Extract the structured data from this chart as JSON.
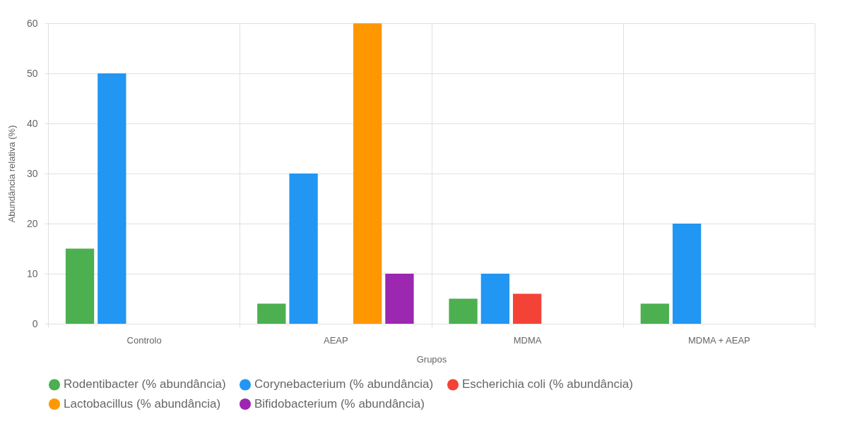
{
  "chart_data": {
    "type": "bar",
    "xlabel": "Grupos",
    "ylabel": "Abundância relativa (%)",
    "categories": [
      "Controlo",
      "AEAP",
      "MDMA",
      "MDMA + AEAP"
    ],
    "series": [
      {
        "name": "Rodentibacter (% abundância)",
        "color": "#4caf50",
        "values": [
          15,
          4,
          5,
          4
        ]
      },
      {
        "name": "Corynebacterium (% abundância)",
        "color": "#2196f3",
        "values": [
          50,
          30,
          10,
          20
        ]
      },
      {
        "name": "Escherichia coli (% abundância)",
        "color": "#f44336",
        "values": [
          0,
          0,
          6,
          0
        ]
      },
      {
        "name": "Lactobacillus (% abundância)",
        "color": "#ff9800",
        "values": [
          0,
          60,
          0,
          0
        ]
      },
      {
        "name": "Bifidobacterium (% abundância)",
        "color": "#9c27b0",
        "values": [
          0,
          10,
          0,
          0
        ]
      }
    ],
    "ylim": [
      0,
      60
    ],
    "yticks": [
      0,
      10,
      20,
      30,
      40,
      50,
      60
    ],
    "grid": true,
    "legend": "bottom"
  }
}
